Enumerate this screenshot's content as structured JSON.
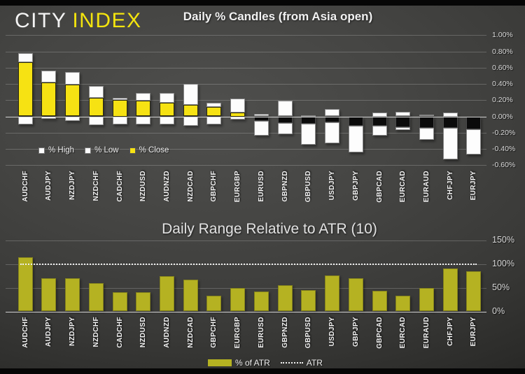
{
  "header": {
    "logo_city": "CITY",
    "logo_index": "INDEX"
  },
  "chart_data": [
    {
      "id": "candles",
      "type": "bar",
      "subtype": "stacked-candles",
      "title": "Daily % Candles (from Asia open)",
      "categories": [
        "AUDCHF",
        "AUDJPY",
        "NZDJPY",
        "NZDCHF",
        "CADCHF",
        "NZDUSD",
        "AUDNZD",
        "NZDCAD",
        "GBPCHF",
        "EURGBP",
        "EURUSD",
        "GBPNZD",
        "GBPUSD",
        "USDJPY",
        "GBPJPY",
        "GBPCAD",
        "EURCAD",
        "EURAUD",
        "CHFJPY",
        "EURJPY"
      ],
      "series": [
        {
          "name": "% High",
          "values": [
            0.78,
            0.56,
            0.55,
            0.37,
            0.23,
            0.29,
            0.29,
            0.4,
            0.17,
            0.22,
            0.03,
            0.19,
            0.01,
            0.09,
            0.0,
            0.05,
            0.06,
            0.02,
            0.05,
            0.0
          ]
        },
        {
          "name": "% Low",
          "values": [
            -0.1,
            -0.03,
            -0.06,
            -0.11,
            -0.1,
            -0.1,
            -0.1,
            -0.12,
            -0.1,
            -0.04,
            -0.24,
            -0.22,
            -0.35,
            -0.33,
            -0.44,
            -0.24,
            -0.17,
            -0.29,
            -0.53,
            -0.47
          ]
        },
        {
          "name": "% Close",
          "values": [
            0.67,
            0.42,
            0.39,
            0.23,
            0.2,
            0.19,
            0.17,
            0.14,
            0.12,
            0.05,
            -0.06,
            -0.08,
            -0.09,
            -0.07,
            -0.12,
            -0.12,
            -0.13,
            -0.14,
            -0.14,
            -0.16
          ]
        }
      ],
      "ylim": [
        -0.6,
        1.0
      ],
      "y_tick_values": [
        1.0,
        0.8,
        0.6,
        0.4,
        0.2,
        0.0,
        -0.2,
        -0.4,
        -0.6
      ],
      "y_ticks": [
        "1.00%",
        "0.80%",
        "0.60%",
        "0.40%",
        "0.20%",
        "0.00%",
        "-0.20%",
        "-0.40%",
        "-0.60%"
      ],
      "legend": [
        "% High",
        "% Low",
        "% Close"
      ],
      "colors": {
        "high": "#fdfdfd",
        "low": "#fdfdfd",
        "close_up": "#f6e213",
        "close_down": "#0b0b0b"
      },
      "grid": "on",
      "legend_position": "left-under-plot"
    },
    {
      "id": "atr",
      "type": "bar",
      "title": "Daily Range Relative to ATR (10)",
      "categories": [
        "AUDCHF",
        "AUDJPY",
        "NZDJPY",
        "NZDCHF",
        "CADCHF",
        "NZDUSD",
        "AUDNZD",
        "NZDCAD",
        "GBPCHF",
        "EURGBP",
        "EURUSD",
        "GBPNZD",
        "GBPUSD",
        "USDJPY",
        "GBPJPY",
        "GBPCAD",
        "EURCAD",
        "EURAUD",
        "CHFJPY",
        "EURJPY"
      ],
      "values": [
        115,
        70,
        71,
        60,
        41,
        40,
        75,
        68,
        34,
        50,
        42,
        55,
        45,
        76,
        70,
        43,
        33,
        50,
        91,
        85
      ],
      "atr_reference_line": 100,
      "ylim": [
        0,
        150
      ],
      "y_tick_values": [
        150,
        100,
        50,
        0
      ],
      "y_ticks": [
        "150%",
        "100%",
        "50%",
        "0%"
      ],
      "legend": [
        "% of ATR",
        "ATR"
      ],
      "bar_color": "#b5b222",
      "line_color": "#f0f0f0",
      "grid": "on",
      "legend_position": "bottom-center"
    }
  ]
}
